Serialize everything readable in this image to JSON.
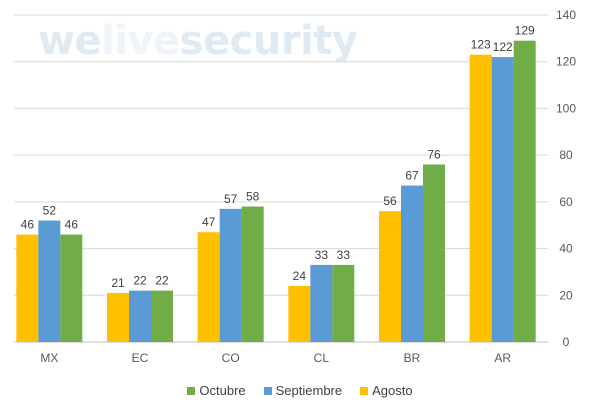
{
  "watermark": "welivesecurity",
  "chart_data": {
    "type": "bar",
    "title": "",
    "xlabel": "",
    "ylabel": "",
    "ylim": [
      0,
      140
    ],
    "yticks": [
      0,
      20,
      40,
      60,
      80,
      100,
      120,
      140
    ],
    "y_axis_side": "right",
    "grid": true,
    "legend_position": "bottom",
    "categories": [
      "MX",
      "EC",
      "CO",
      "CL",
      "BR",
      "AR"
    ],
    "series": [
      {
        "name": "Agosto",
        "color": "#FFC000",
        "values": [
          46,
          21,
          47,
          24,
          56,
          123
        ]
      },
      {
        "name": "Septiembre",
        "color": "#5B9BD5",
        "values": [
          52,
          22,
          57,
          33,
          67,
          122
        ]
      },
      {
        "name": "Octubre",
        "color": "#70AD47",
        "values": [
          46,
          22,
          58,
          33,
          76,
          129
        ]
      }
    ],
    "legend_order": [
      "Octubre",
      "Septiembre",
      "Agosto"
    ]
  }
}
